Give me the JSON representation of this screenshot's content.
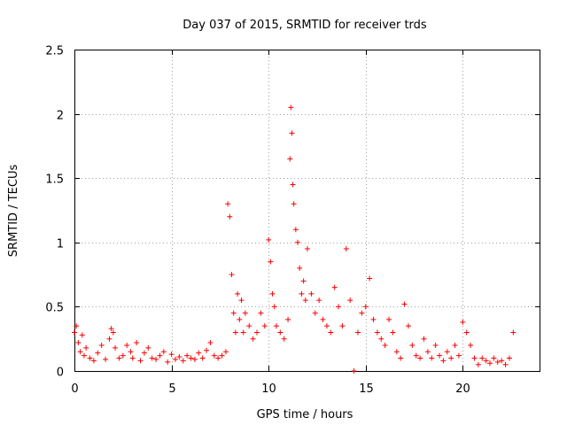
{
  "chart_data": {
    "type": "scatter",
    "title": "Day 037 of 2015, SRMTID for receiver trds",
    "xlabel": "GPS time / hours",
    "ylabel": "SRMTID / TECUs",
    "xlim": [
      0,
      24
    ],
    "ylim": [
      0,
      2.5
    ],
    "xticks": [
      0,
      5,
      10,
      15,
      20
    ],
    "xtick_labels": [
      "0",
      "5",
      "10",
      "15",
      "20"
    ],
    "yticks": [
      0,
      0.5,
      1,
      1.5,
      2,
      2.5
    ],
    "ytick_labels": [
      "0",
      "0.5",
      "1",
      "1.5",
      "2",
      "2.5"
    ],
    "grid": true,
    "marker": "+",
    "series_color": "#ff0000",
    "series": [
      {
        "name": "SRMTID",
        "x": [
          0.0,
          0.1,
          0.2,
          0.3,
          0.4,
          0.5,
          0.6,
          0.8,
          1.0,
          1.2,
          1.4,
          1.6,
          1.8,
          1.9,
          2.0,
          2.1,
          2.3,
          2.5,
          2.7,
          2.9,
          3.0,
          3.2,
          3.4,
          3.6,
          3.8,
          4.0,
          4.2,
          4.4,
          4.6,
          4.8,
          5.0,
          5.2,
          5.4,
          5.6,
          5.8,
          6.0,
          6.2,
          6.4,
          6.6,
          6.8,
          7.0,
          7.2,
          7.4,
          7.6,
          7.8,
          7.9,
          8.0,
          8.1,
          8.2,
          8.3,
          8.4,
          8.5,
          8.6,
          8.7,
          8.8,
          9.0,
          9.2,
          9.4,
          9.6,
          9.8,
          10.0,
          10.1,
          10.2,
          10.3,
          10.4,
          10.6,
          10.8,
          11.0,
          11.1,
          11.15,
          11.2,
          11.25,
          11.3,
          11.4,
          11.5,
          11.6,
          11.7,
          11.8,
          11.9,
          12.0,
          12.2,
          12.4,
          12.6,
          12.8,
          13.0,
          13.2,
          13.4,
          13.6,
          13.8,
          14.0,
          14.2,
          14.4,
          14.6,
          14.8,
          15.0,
          15.2,
          15.4,
          15.6,
          15.8,
          16.0,
          16.2,
          16.4,
          16.6,
          16.8,
          17.0,
          17.2,
          17.4,
          17.6,
          17.8,
          18.0,
          18.2,
          18.4,
          18.6,
          18.8,
          19.0,
          19.2,
          19.4,
          19.6,
          19.8,
          20.0,
          20.2,
          20.4,
          20.6,
          20.8,
          21.0,
          21.2,
          21.4,
          21.6,
          21.8,
          22.0,
          22.2,
          22.4,
          22.6
        ],
        "y": [
          0.3,
          0.35,
          0.22,
          0.15,
          0.28,
          0.12,
          0.18,
          0.1,
          0.08,
          0.14,
          0.2,
          0.09,
          0.25,
          0.33,
          0.3,
          0.18,
          0.1,
          0.12,
          0.2,
          0.15,
          0.1,
          0.22,
          0.08,
          0.14,
          0.18,
          0.1,
          0.09,
          0.12,
          0.15,
          0.07,
          0.13,
          0.09,
          0.11,
          0.08,
          0.12,
          0.1,
          0.09,
          0.14,
          0.1,
          0.16,
          0.22,
          0.12,
          0.1,
          0.12,
          0.15,
          1.3,
          1.2,
          0.75,
          0.45,
          0.3,
          0.6,
          0.4,
          0.55,
          0.3,
          0.45,
          0.35,
          0.25,
          0.3,
          0.45,
          0.35,
          1.02,
          0.85,
          0.6,
          0.5,
          0.35,
          0.3,
          0.25,
          0.4,
          1.65,
          2.05,
          1.85,
          1.45,
          1.3,
          1.1,
          1.0,
          0.8,
          0.6,
          0.7,
          0.55,
          0.95,
          0.6,
          0.45,
          0.55,
          0.4,
          0.35,
          0.3,
          0.65,
          0.5,
          0.35,
          0.95,
          0.55,
          0.0,
          0.3,
          0.45,
          0.5,
          0.72,
          0.4,
          0.3,
          0.25,
          0.2,
          0.4,
          0.3,
          0.15,
          0.1,
          0.52,
          0.35,
          0.2,
          0.12,
          0.1,
          0.25,
          0.15,
          0.1,
          0.2,
          0.12,
          0.08,
          0.15,
          0.1,
          0.2,
          0.12,
          0.38,
          0.3,
          0.2,
          0.1,
          0.05,
          0.1,
          0.08,
          0.06,
          0.1,
          0.07,
          0.08,
          0.05,
          0.1,
          0.3
        ]
      }
    ]
  }
}
